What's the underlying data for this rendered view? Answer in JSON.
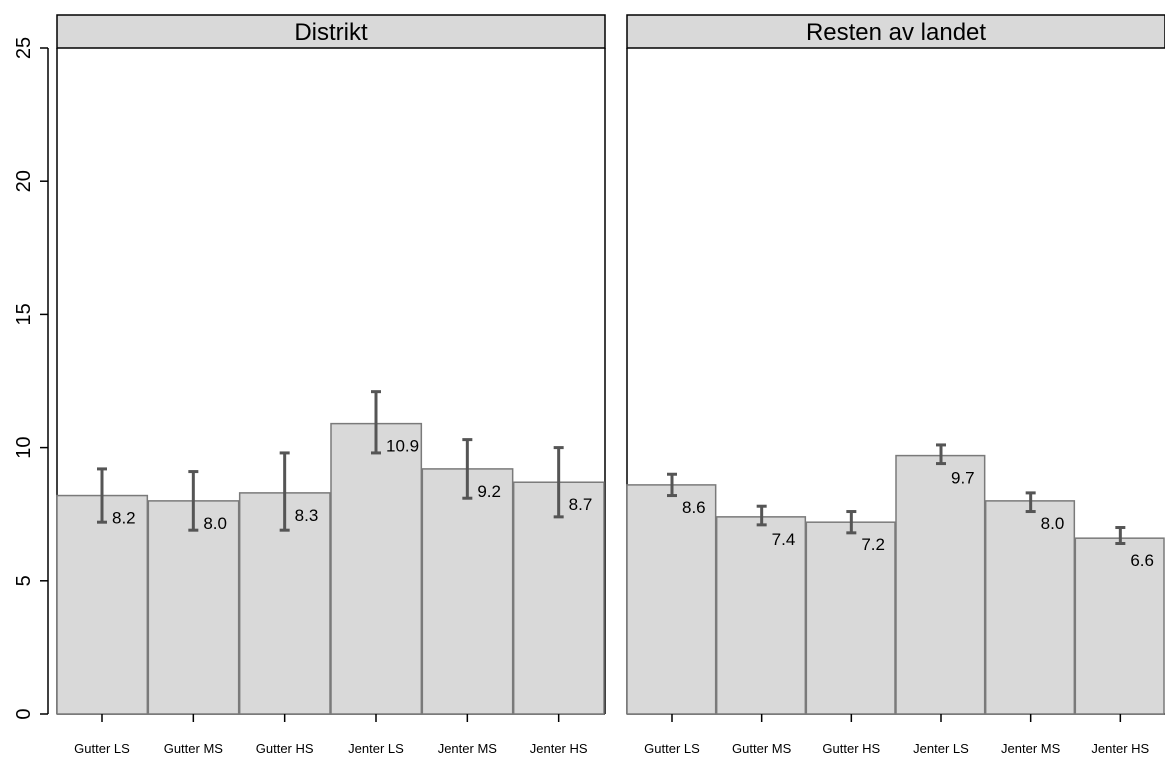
{
  "chart_data": {
    "type": "bar",
    "title": "",
    "xlabel": "",
    "ylabel": "",
    "ylim": [
      0,
      25
    ],
    "yticks": [
      0,
      5,
      10,
      15,
      20,
      25
    ],
    "grid": false,
    "colors": {
      "bar_fill": "#d9d9d9",
      "bar_stroke": "#7a7a7a",
      "error_bar": "#555555",
      "strip_fill": "#d9d9d9",
      "frame": "#000000"
    },
    "categories": [
      "Gutter LS",
      "Gutter MS",
      "Gutter HS",
      "Jenter LS",
      "Jenter MS",
      "Jenter HS"
    ],
    "panels": [
      {
        "name": "Distrikt",
        "values": [
          8.2,
          8.0,
          8.3,
          10.9,
          9.2,
          8.7
        ],
        "value_labels": [
          "8.2",
          "8.0",
          "8.3",
          "10.9",
          "9.2",
          "8.7"
        ],
        "ci_low": [
          7.2,
          6.9,
          6.9,
          9.8,
          8.1,
          7.4
        ],
        "ci_high": [
          9.2,
          9.1,
          9.8,
          12.1,
          10.3,
          10.0
        ]
      },
      {
        "name": "Resten av landet",
        "values": [
          8.6,
          7.4,
          7.2,
          9.7,
          8.0,
          6.6
        ],
        "value_labels": [
          "8.6",
          "7.4",
          "7.2",
          "9.7",
          "8.0",
          "6.6"
        ],
        "ci_low": [
          8.2,
          7.1,
          6.8,
          9.4,
          7.6,
          6.4
        ],
        "ci_high": [
          9.0,
          7.8,
          7.6,
          10.1,
          8.3,
          7.0
        ]
      }
    ]
  }
}
